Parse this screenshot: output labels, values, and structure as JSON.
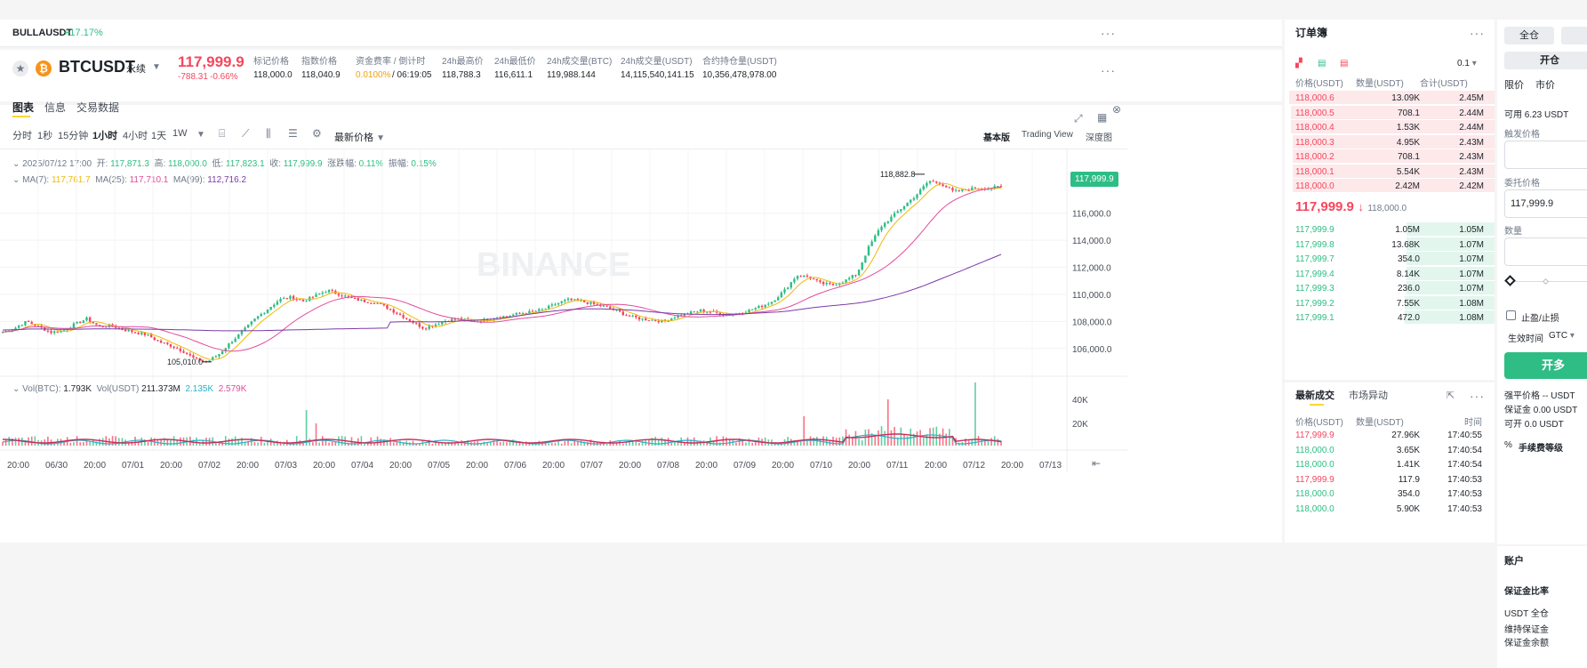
{
  "ticker_strip": {
    "symbol": "BULLAUSDT",
    "change": "+17.17%"
  },
  "header": {
    "symbol": "BTCUSDT",
    "contract_type": "永续",
    "last_price": "117,999.9",
    "change_abs": "-788.31",
    "change_pct": "-0.66%",
    "stats": [
      {
        "label": "标记价格",
        "value": "118,000.0"
      },
      {
        "label": "指数价格",
        "value": "118,040.9"
      },
      {
        "label": "资金费率 / 倒计时",
        "value": "0.0100%",
        "value2": "/ 06:19:05"
      },
      {
        "label": "24h最高价",
        "value": "118,788.3"
      },
      {
        "label": "24h最低价",
        "value": "116,611.1"
      },
      {
        "label": "24h成交量(BTC)",
        "value": "119,988.144"
      },
      {
        "label": "24h成交量(USDT)",
        "value": "14,115,540,141.15"
      },
      {
        "label": "合约持仓量(USDT)",
        "value": "10,356,478,978.00"
      }
    ]
  },
  "chart_tabs": [
    "图表",
    "信息",
    "交易数据"
  ],
  "intervals": [
    "分时",
    "1秒",
    "15分钟",
    "1小时",
    "4小时",
    "1天",
    "1W"
  ],
  "price_type_label": "最新价格",
  "view_modes": [
    "基本版",
    "Trading View",
    "深度图"
  ],
  "ohlc": {
    "date": "2025/07/12 17:00",
    "open_label": "开:",
    "open": "117,871.3",
    "high_label": "高:",
    "high": "118,000.0",
    "low_label": "低:",
    "low": "117,823.1",
    "close_label": "收:",
    "close": "117,999.9",
    "chg_label": "涨跌幅:",
    "chg": "0.11%",
    "amp_label": "振幅:",
    "amp": "0.15%"
  },
  "ma": {
    "ma7_label": "MA(7):",
    "ma7": "117,761.7",
    "ma25_label": "MA(25):",
    "ma25": "117,710.1",
    "ma99_label": "MA(99):",
    "ma99": "112,716.2"
  },
  "watermark": "BINANCE",
  "price_tag": "117,999.9",
  "high_marker": "118,882.8",
  "low_marker": "105,010.0",
  "vol": {
    "label1": "Vol(BTC):",
    "v1": "1.793K",
    "label2": "Vol(USDT)",
    "v2": "211.373M",
    "v3": "2.135K",
    "v4": "2.579K"
  },
  "vol_ticks": [
    "40K",
    "20K"
  ],
  "time_labels": [
    "20:00",
    "06/30",
    "20:00",
    "07/01",
    "20:00",
    "07/02",
    "20:00",
    "07/03",
    "20:00",
    "07/04",
    "20:00",
    "07/05",
    "20:00",
    "07/06",
    "20:00",
    "07/07",
    "20:00",
    "07/08",
    "20:00",
    "07/09",
    "20:00",
    "07/10",
    "20:00",
    "07/11",
    "20:00",
    "07/12",
    "20:00",
    "07/13"
  ],
  "chart_data": {
    "type": "candlestick",
    "title": "",
    "y_ticks": [
      "116,000.0",
      "114,000.0",
      "112,000.0",
      "110,000.0",
      "108,000.0",
      "106,000.0"
    ],
    "ylim": [
      104800,
      119400
    ],
    "close_path": [
      107200,
      107500,
      108000,
      107600,
      107200,
      107300,
      107800,
      108200,
      107600,
      107700,
      107400,
      107200,
      107000,
      106500,
      106200,
      105800,
      105200,
      105010,
      105600,
      106500,
      107300,
      108200,
      108900,
      109600,
      109800,
      109500,
      109900,
      110300,
      110000,
      109700,
      109500,
      109400,
      109000,
      108500,
      108000,
      107500,
      107800,
      108100,
      108200,
      108000,
      108100,
      108300,
      108400,
      108600,
      108700,
      108900,
      109300,
      109600,
      109500,
      109300,
      109100,
      108800,
      108400,
      108200,
      108100,
      108000,
      108400,
      108600,
      108800,
      108700,
      108500,
      108600,
      108800,
      109100,
      109500,
      110300,
      111400,
      111300,
      110800,
      110700,
      111000,
      111500,
      113500,
      115000,
      115800,
      116600,
      117400,
      118400,
      118200,
      117600,
      117700,
      117900,
      117800,
      118000
    ],
    "ma7": "117,761.7",
    "ma25": "117,710.1",
    "ma99": "112,716.2"
  },
  "orderbook": {
    "title": "订单簿",
    "precision": "0.1",
    "headers": [
      "价格(USDT)",
      "数量(USDT)",
      "合计(USDT)"
    ],
    "asks": [
      [
        "118,000.6",
        "13.09K",
        "2.45M",
        0.98
      ],
      [
        "118,000.5",
        "708.1",
        "2.44M",
        0.97
      ],
      [
        "118,000.4",
        "1.53K",
        "2.44M",
        0.97
      ],
      [
        "118,000.3",
        "4.95K",
        "2.43M",
        0.96
      ],
      [
        "118,000.2",
        "708.1",
        "2.43M",
        0.96
      ],
      [
        "118,000.1",
        "5.54K",
        "2.43M",
        0.96
      ],
      [
        "118,000.0",
        "2.42M",
        "2.42M",
        0.96
      ]
    ],
    "mid_price": "117,999.9",
    "mid_arrow": "↓",
    "mark": "118,000.0",
    "bids": [
      [
        "117,999.9",
        "1.05M",
        "1.05M",
        0.42
      ],
      [
        "117,999.8",
        "13.68K",
        "1.07M",
        0.42
      ],
      [
        "117,999.7",
        "354.0",
        "1.07M",
        0.42
      ],
      [
        "117,999.4",
        "8.14K",
        "1.07M",
        0.42
      ],
      [
        "117,999.3",
        "236.0",
        "1.07M",
        0.42
      ],
      [
        "117,999.2",
        "7.55K",
        "1.08M",
        0.43
      ],
      [
        "117,999.1",
        "472.0",
        "1.08M",
        0.43
      ]
    ]
  },
  "trades": {
    "tabs": [
      "最新成交",
      "市场异动"
    ],
    "headers": [
      "价格(USDT)",
      "数量(USDT)",
      "时间"
    ],
    "rows": [
      [
        "117,999.9",
        "27.96K",
        "17:40:55",
        "red"
      ],
      [
        "118,000.0",
        "3.65K",
        "17:40:54",
        "green"
      ],
      [
        "118,000.0",
        "1.41K",
        "17:40:54",
        "green"
      ],
      [
        "117,999.9",
        "117.9",
        "17:40:53",
        "red"
      ],
      [
        "118,000.0",
        "354.0",
        "17:40:53",
        "green"
      ],
      [
        "118,000.0",
        "5.90K",
        "17:40:53",
        "green"
      ]
    ]
  },
  "form": {
    "margin_mode": "全仓",
    "open_label": "开仓",
    "order_types": [
      "限价",
      "市价"
    ],
    "available": "可用 6.23 USDT",
    "trigger_label": "触发价格",
    "price_label": "委托价格",
    "price_value": "117,999.9",
    "qty_label": "数量",
    "tpsl_label": "止盈/止损",
    "tif_label": "生效时间",
    "tif_value": "GTC",
    "long_button": "开多",
    "liq_price": "强平价格 -- USDT",
    "margin": "保证金 0.00 USDT",
    "max_open": "可开 0.0 USDT",
    "fee_tier": "手续费等级"
  },
  "account": {
    "title": "账户",
    "margin_ratio": "保证金比率",
    "usdt_mode": "USDT 全仓",
    "maint_margin": "维持保证金",
    "margin_balance": "保证金余额"
  },
  "colors": {
    "up": "#2ebd85",
    "down": "#f6465d",
    "ma7": "#f0b90b",
    "ma25": "#e14c9c",
    "ma99": "#7b3aa8",
    "accent": "#fcd535"
  }
}
